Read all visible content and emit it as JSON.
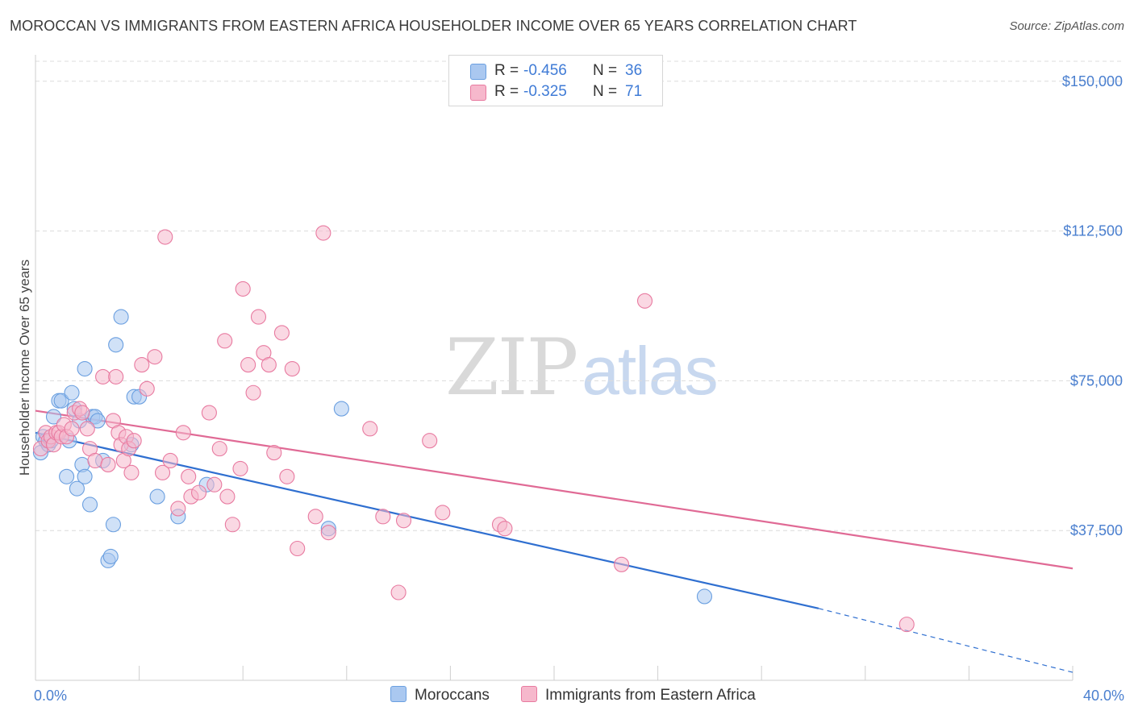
{
  "title": "MOROCCAN VS IMMIGRANTS FROM EASTERN AFRICA HOUSEHOLDER INCOME OVER 65 YEARS CORRELATION CHART",
  "source": "Source: ZipAtlas.com",
  "watermark": {
    "zip": "ZIP",
    "atlas": "atlas"
  },
  "legend_top": [
    {
      "r_label": "R = ",
      "r_value": "-0.456",
      "n_label": "N = ",
      "n_value": "36",
      "color": "#aac8f0"
    },
    {
      "r_label": "R = ",
      "r_value": "-0.325",
      "n_label": "N = ",
      "n_value": "71",
      "color": "#f6b8cc"
    }
  ],
  "chart_data": {
    "type": "scatter",
    "title": "MOROCCAN VS IMMIGRANTS FROM EASTERN AFRICA HOUSEHOLDER INCOME OVER 65 YEARS CORRELATION CHART",
    "xlabel": "",
    "ylabel": "Householder Income Over 65 years",
    "xlim": [
      0,
      40
    ],
    "ylim": [
      0,
      155000
    ],
    "x_tick_labels": [
      "0.0%",
      "40.0%"
    ],
    "y_ticks": [
      37500,
      75000,
      112500,
      150000
    ],
    "y_tick_labels": [
      "$37,500",
      "$75,000",
      "$112,500",
      "$150,000"
    ],
    "grid": true,
    "legend_position": "bottom",
    "series": [
      {
        "name": "Moroccans",
        "color": "#6a9fe0",
        "fill": "#aac8f0",
        "points": [
          [
            0.2,
            57000
          ],
          [
            0.3,
            61000
          ],
          [
            0.4,
            60000
          ],
          [
            0.5,
            59000
          ],
          [
            0.6,
            60000
          ],
          [
            0.7,
            66000
          ],
          [
            0.9,
            70000
          ],
          [
            1.0,
            70000
          ],
          [
            1.2,
            51000
          ],
          [
            1.3,
            60000
          ],
          [
            1.4,
            72000
          ],
          [
            1.5,
            68000
          ],
          [
            1.6,
            48000
          ],
          [
            1.7,
            65000
          ],
          [
            1.8,
            54000
          ],
          [
            1.9,
            78000
          ],
          [
            1.9,
            51000
          ],
          [
            2.1,
            44000
          ],
          [
            2.2,
            66000
          ],
          [
            2.3,
            66000
          ],
          [
            2.4,
            65000
          ],
          [
            2.6,
            55000
          ],
          [
            2.8,
            30000
          ],
          [
            2.9,
            31000
          ],
          [
            3.0,
            39000
          ],
          [
            3.1,
            84000
          ],
          [
            3.3,
            91000
          ],
          [
            3.7,
            59000
          ],
          [
            3.8,
            71000
          ],
          [
            4.0,
            71000
          ],
          [
            4.7,
            46000
          ],
          [
            5.5,
            41000
          ],
          [
            6.6,
            49000
          ],
          [
            11.3,
            38000
          ],
          [
            11.8,
            68000
          ],
          [
            25.8,
            21000
          ]
        ]
      },
      {
        "name": "Immigrants from Eastern Africa",
        "color": "#e87aa0",
        "fill": "#f6b8cc",
        "points": [
          [
            0.2,
            58000
          ],
          [
            0.4,
            62000
          ],
          [
            0.5,
            60000
          ],
          [
            0.6,
            61000
          ],
          [
            0.7,
            59000
          ],
          [
            0.8,
            62000
          ],
          [
            0.9,
            62000
          ],
          [
            1.0,
            61000
          ],
          [
            1.1,
            64000
          ],
          [
            1.2,
            61000
          ],
          [
            1.4,
            63000
          ],
          [
            1.5,
            67000
          ],
          [
            1.7,
            68000
          ],
          [
            1.8,
            67000
          ],
          [
            2.0,
            63000
          ],
          [
            2.1,
            58000
          ],
          [
            2.3,
            55000
          ],
          [
            2.6,
            76000
          ],
          [
            2.8,
            54000
          ],
          [
            3.0,
            65000
          ],
          [
            3.1,
            76000
          ],
          [
            3.2,
            62000
          ],
          [
            3.3,
            59000
          ],
          [
            3.4,
            55000
          ],
          [
            3.5,
            61000
          ],
          [
            3.6,
            58000
          ],
          [
            3.7,
            52000
          ],
          [
            3.8,
            60000
          ],
          [
            4.1,
            79000
          ],
          [
            4.3,
            73000
          ],
          [
            4.6,
            81000
          ],
          [
            4.9,
            52000
          ],
          [
            5.0,
            111000
          ],
          [
            5.2,
            55000
          ],
          [
            5.5,
            43000
          ],
          [
            5.7,
            62000
          ],
          [
            5.9,
            51000
          ],
          [
            6.0,
            46000
          ],
          [
            6.3,
            47000
          ],
          [
            6.7,
            67000
          ],
          [
            6.9,
            49000
          ],
          [
            7.1,
            58000
          ],
          [
            7.3,
            85000
          ],
          [
            7.4,
            46000
          ],
          [
            7.6,
            39000
          ],
          [
            7.9,
            53000
          ],
          [
            8.0,
            98000
          ],
          [
            8.2,
            79000
          ],
          [
            8.4,
            72000
          ],
          [
            8.6,
            91000
          ],
          [
            8.8,
            82000
          ],
          [
            9.0,
            79000
          ],
          [
            9.2,
            57000
          ],
          [
            9.5,
            87000
          ],
          [
            9.7,
            51000
          ],
          [
            9.9,
            78000
          ],
          [
            10.1,
            33000
          ],
          [
            10.8,
            41000
          ],
          [
            11.1,
            112000
          ],
          [
            11.3,
            37000
          ],
          [
            12.9,
            63000
          ],
          [
            13.4,
            41000
          ],
          [
            14.0,
            22000
          ],
          [
            14.2,
            40000
          ],
          [
            15.2,
            60000
          ],
          [
            15.7,
            42000
          ],
          [
            17.9,
            39000
          ],
          [
            18.1,
            38000
          ],
          [
            22.6,
            29000
          ],
          [
            23.5,
            95000
          ],
          [
            33.6,
            14000
          ]
        ]
      }
    ],
    "trendlines": [
      {
        "series": "Moroccans",
        "x": [
          0,
          30.2
        ],
        "y": [
          62000,
          18000
        ],
        "dashed_extension_to": [
          40,
          2000
        ]
      },
      {
        "series": "Immigrants from Eastern Africa",
        "x": [
          0,
          40
        ],
        "y": [
          67500,
          28000
        ]
      }
    ]
  }
}
